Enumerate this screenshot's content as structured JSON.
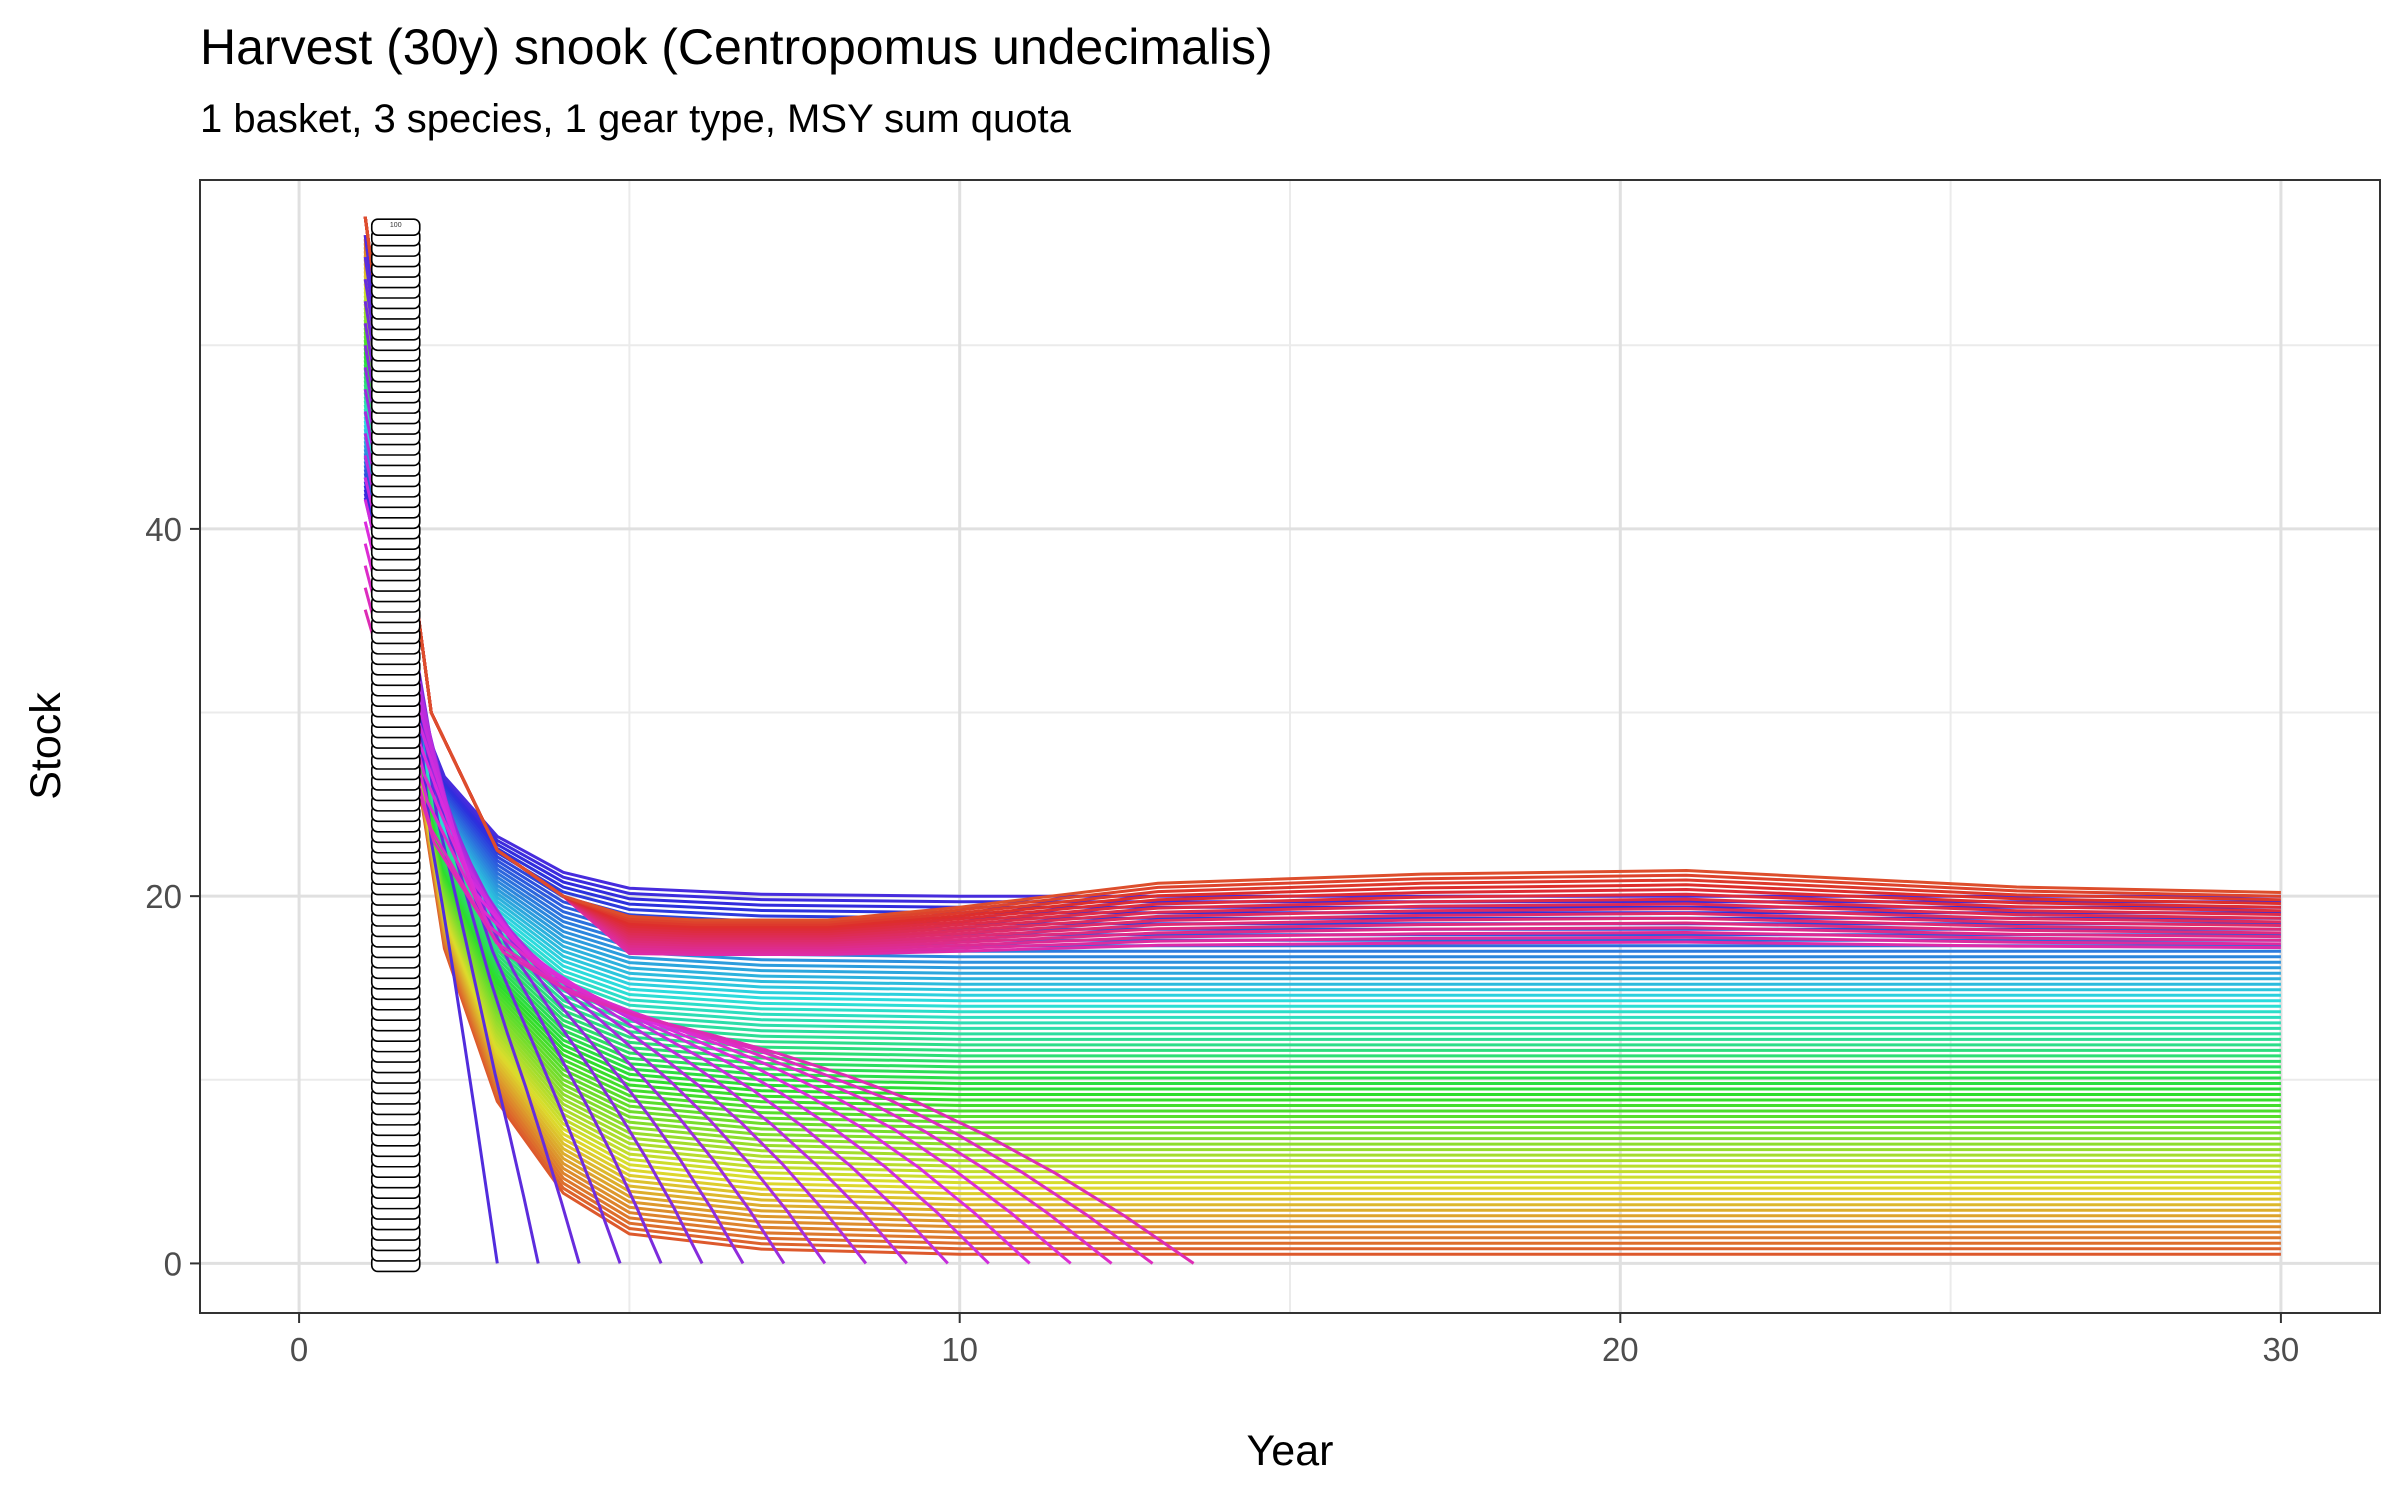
{
  "title": "Harvest (30y) snook (Centropomus undecimalis)",
  "subtitle": "1 basket, 3 species, 1 gear type, MSY sum quota",
  "chart_data": {
    "type": "line",
    "title": "Harvest (30y) snook (Centropomus undecimalis)",
    "subtitle": "1 basket, 3 species, 1 gear type, MSY sum quota",
    "xlabel": "Year",
    "ylabel": "Stock",
    "xlim": [
      -1.5,
      31.5
    ],
    "ylim": [
      -2.7,
      59
    ],
    "x_ticks": [
      0,
      10,
      20,
      30
    ],
    "y_ticks": [
      0,
      20,
      40
    ],
    "grid": true,
    "legend": "none",
    "series_count": 100,
    "series_colors": "hue palette (red, orange, olive, green, teal, cyan, blue, violet, pink)",
    "point_labels": [
      "100"
    ],
    "representative_series": [
      {
        "x": [
          1,
          2,
          3,
          4,
          5,
          6,
          8,
          10,
          13,
          17,
          21,
          26,
          30
        ],
        "y": [
          57,
          30,
          22.5,
          20,
          19,
          18.8,
          18.8,
          19.5,
          20.8,
          21.3,
          21.5,
          20.6,
          20.3
        ]
      },
      {
        "x": [
          1,
          2,
          3,
          4,
          5,
          7,
          9,
          10,
          12,
          14,
          30
        ],
        "y": [
          55,
          29,
          22,
          19.5,
          18.5,
          17,
          15.5,
          15.5,
          16.5,
          17,
          17
        ]
      },
      {
        "x": [
          1,
          2,
          3,
          5,
          7,
          10,
          12,
          13,
          14
        ],
        "y": [
          52,
          27,
          21.5,
          18,
          16,
          12.5,
          8.5,
          4.5,
          0
        ]
      },
      {
        "x": [
          1,
          2,
          3,
          4,
          6,
          8,
          9,
          10
        ],
        "y": [
          48,
          25,
          19.5,
          16.5,
          13,
          9,
          5,
          0
        ]
      },
      {
        "x": [
          1,
          2,
          3,
          5,
          6,
          7
        ],
        "y": [
          42,
          22,
          16,
          8.5,
          4,
          0
        ]
      },
      {
        "x": [
          1,
          2,
          3,
          4,
          5
        ],
        "y": [
          36,
          18,
          11,
          5,
          0
        ]
      },
      {
        "x": [
          1,
          2,
          3,
          4
        ],
        "y": [
          30,
          14,
          6,
          0
        ]
      },
      {
        "x": [
          1,
          2,
          3,
          30
        ],
        "y": [
          56,
          38,
          0.5,
          0.5
        ]
      },
      {
        "x": [
          1,
          30
        ],
        "y": [
          5,
          5
        ]
      },
      {
        "x": [
          1,
          30
        ],
        "y": [
          0.8,
          0.8
        ]
      }
    ]
  }
}
